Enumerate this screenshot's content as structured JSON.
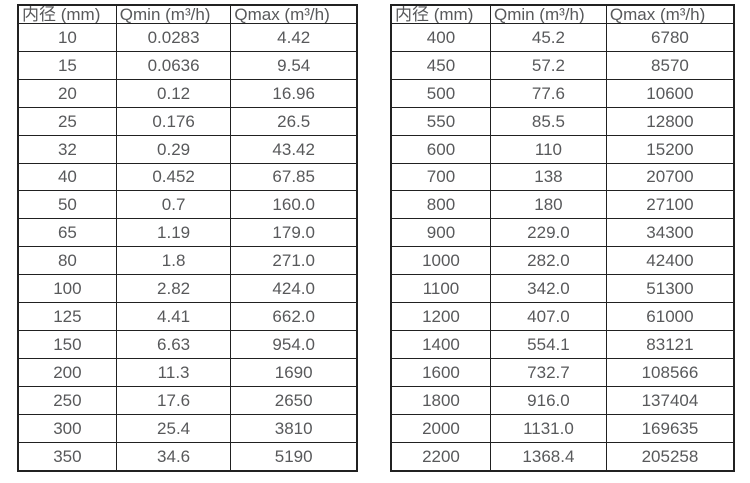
{
  "colors": {
    "background": "#ffffff",
    "border": "#212121",
    "text": "#58595b"
  },
  "tables": [
    {
      "name": "small-diameters",
      "headers": [
        "内径 (mm)",
        "Qmin (m³/h)",
        "Qmax (m³/h)"
      ],
      "rows": [
        [
          "10",
          "0.0283",
          "4.42"
        ],
        [
          "15",
          "0.0636",
          "9.54"
        ],
        [
          "20",
          "0.12",
          "16.96"
        ],
        [
          "25",
          "0.176",
          "26.5"
        ],
        [
          "32",
          "0.29",
          "43.42"
        ],
        [
          "40",
          "0.452",
          "67.85"
        ],
        [
          "50",
          "0.7",
          "160.0"
        ],
        [
          "65",
          "1.19",
          "179.0"
        ],
        [
          "80",
          "1.8",
          "271.0"
        ],
        [
          "100",
          "2.82",
          "424.0"
        ],
        [
          "125",
          "4.41",
          "662.0"
        ],
        [
          "150",
          "6.63",
          "954.0"
        ],
        [
          "200",
          "11.3",
          "1690"
        ],
        [
          "250",
          "17.6",
          "2650"
        ],
        [
          "300",
          "25.4",
          "3810"
        ],
        [
          "350",
          "34.6",
          "5190"
        ]
      ]
    },
    {
      "name": "large-diameters",
      "headers": [
        "内径 (mm)",
        "Qmin (m³/h)",
        "Qmax (m³/h)"
      ],
      "rows": [
        [
          "400",
          "45.2",
          "6780"
        ],
        [
          "450",
          "57.2",
          "8570"
        ],
        [
          "500",
          "77.6",
          "10600"
        ],
        [
          "550",
          "85.5",
          "12800"
        ],
        [
          "600",
          "110",
          "15200"
        ],
        [
          "700",
          "138",
          "20700"
        ],
        [
          "800",
          "180",
          "27100"
        ],
        [
          "900",
          "229.0",
          "34300"
        ],
        [
          "1000",
          "282.0",
          "42400"
        ],
        [
          "1100",
          "342.0",
          "51300"
        ],
        [
          "1200",
          "407.0",
          "61000"
        ],
        [
          "1400",
          "554.1",
          "83121"
        ],
        [
          "1600",
          "732.7",
          "108566"
        ],
        [
          "1800",
          "916.0",
          "137404"
        ],
        [
          "2000",
          "1131.0",
          "169635"
        ],
        [
          "2200",
          "1368.4",
          "205258"
        ]
      ]
    }
  ]
}
